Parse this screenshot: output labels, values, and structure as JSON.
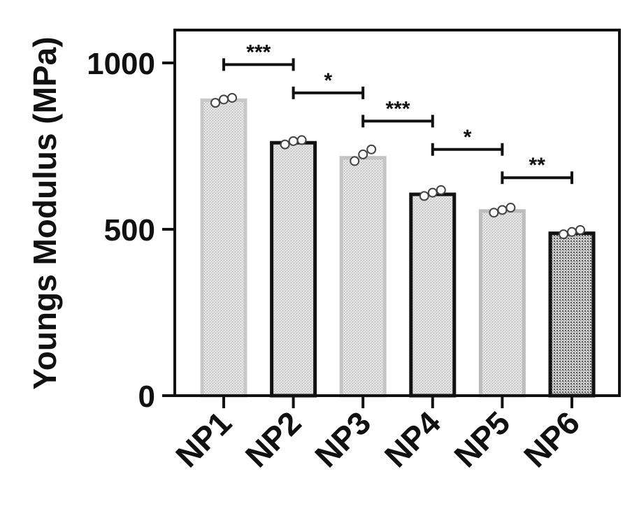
{
  "chart_data": {
    "type": "bar",
    "title": "",
    "xlabel": "",
    "ylabel": "Youngs Modulus (MPa)",
    "ylim": [
      0,
      1000
    ],
    "yticks": [
      0,
      500,
      1000
    ],
    "categories": [
      "NP1",
      "NP2",
      "NP3",
      "NP4",
      "NP5",
      "NP6"
    ],
    "values": [
      888,
      760,
      715,
      605,
      555,
      488
    ],
    "replicates": [
      [
        880,
        890,
        895
      ],
      [
        755,
        765,
        768
      ],
      [
        705,
        725,
        740
      ],
      [
        600,
        610,
        618
      ],
      [
        550,
        558,
        565
      ],
      [
        485,
        492,
        498
      ]
    ],
    "bar_styles": [
      {
        "fill": "#d6d6d6",
        "stroke": "#c8c8c8",
        "pattern": "light"
      },
      {
        "fill": "#b8b8b8",
        "stroke": "#111111",
        "pattern": "light"
      },
      {
        "fill": "#d2d2d2",
        "stroke": "#c4c4c4",
        "pattern": "light"
      },
      {
        "fill": "#dedede",
        "stroke": "#111111",
        "pattern": "light"
      },
      {
        "fill": "#cfcfcf",
        "stroke": "#bdbdbd",
        "pattern": "light"
      },
      {
        "fill": "#9a9a9a",
        "stroke": "#111111",
        "pattern": "dots"
      }
    ],
    "significance": [
      {
        "from": "NP1",
        "to": "NP2",
        "y": 995,
        "label": "***"
      },
      {
        "from": "NP2",
        "to": "NP3",
        "y": 910,
        "label": "*"
      },
      {
        "from": "NP3",
        "to": "NP4",
        "y": 825,
        "label": "***"
      },
      {
        "from": "NP4",
        "to": "NP5",
        "y": 740,
        "label": "*"
      },
      {
        "from": "NP5",
        "to": "NP6",
        "y": 655,
        "label": "**"
      }
    ],
    "grid": false,
    "legend": "none"
  }
}
